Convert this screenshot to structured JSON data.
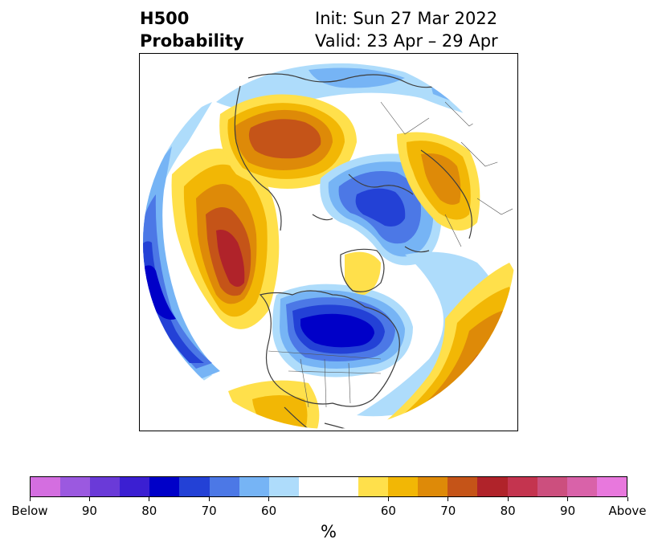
{
  "header": {
    "field": "H500",
    "product": "Probability",
    "init": "Init: Sun 27 Mar 2022",
    "valid": "Valid: 23 Apr – 29 Apr"
  },
  "map": {
    "projection": "north-polar-stereographic",
    "features": [
      "coastlines",
      "country-borders",
      "us-state-borders"
    ],
    "below_color_ramp": [
      "#aedcfb",
      "#76b4f5",
      "#4c78e6",
      "#2341d6",
      "#0000c8"
    ],
    "above_color_ramp": [
      "#ffe04b",
      "#f2b705",
      "#de8a08",
      "#c55418",
      "#b0232a"
    ]
  },
  "colorbar": {
    "unit": "%",
    "colors": [
      "#d46ee0",
      "#9b59e0",
      "#6a3ad8",
      "#3b1fd2",
      "#0000c8",
      "#2341d6",
      "#4c78e6",
      "#76b4f5",
      "#aedcfb",
      "#ffffff",
      "#ffffff",
      "#ffe04b",
      "#f2b705",
      "#de8a08",
      "#c55418",
      "#b0232a",
      "#c4344f",
      "#cc4f7e",
      "#d962a9",
      "#e878dd"
    ],
    "labels": [
      "Below",
      "90",
      "80",
      "70",
      "60",
      "60",
      "70",
      "80",
      "90",
      "Above"
    ]
  }
}
